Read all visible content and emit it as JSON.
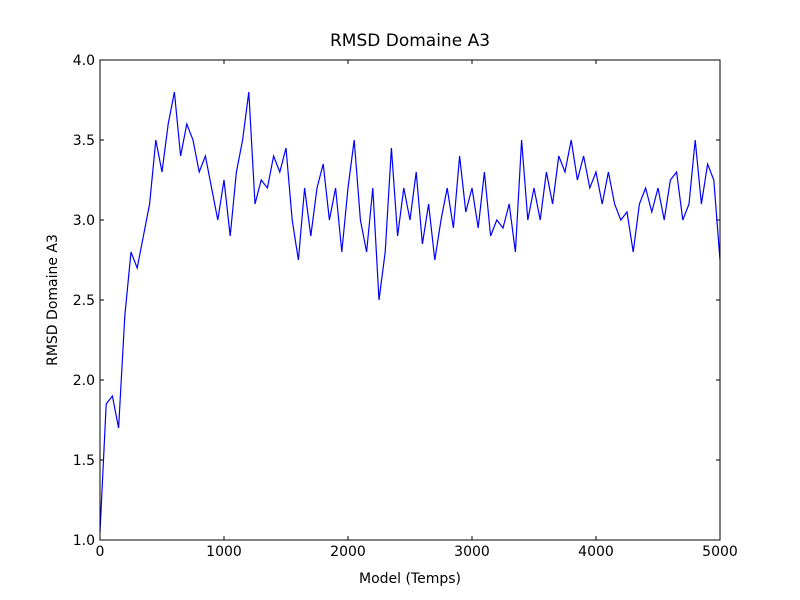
{
  "chart_data": {
    "type": "line",
    "title": "RMSD Domaine A3",
    "x_label": "Model (Temps)",
    "y_label": "RMSD Domaine A3",
    "x": [
      0,
      50,
      100,
      150,
      200,
      250,
      300,
      350,
      400,
      450,
      500,
      550,
      600,
      650,
      700,
      750,
      800,
      850,
      900,
      950,
      1000,
      1050,
      1100,
      1150,
      1200,
      1250,
      1300,
      1350,
      1400,
      1450,
      1500,
      1550,
      1600,
      1650,
      1700,
      1750,
      1800,
      1850,
      1900,
      1950,
      2000,
      2050,
      2100,
      2150,
      2200,
      2250,
      2300,
      2350,
      2400,
      2450,
      2500,
      2550,
      2600,
      2650,
      2700,
      2750,
      2800,
      2850,
      2900,
      2950,
      3000,
      3050,
      3100,
      3150,
      3200,
      3250,
      3300,
      3350,
      3400,
      3450,
      3500,
      3550,
      3600,
      3650,
      3700,
      3750,
      3800,
      3850,
      3900,
      3950,
      4000,
      4050,
      4100,
      4150,
      4200,
      4250,
      4300,
      4350,
      4400,
      4450,
      4500,
      4550,
      4600,
      4650,
      4700,
      4750,
      4800,
      4850,
      4900,
      4950,
      5000
    ],
    "series": [
      {
        "name": "RMSD Domaine A3",
        "color": "#0000ff",
        "values": [
          1.05,
          1.85,
          1.9,
          1.7,
          2.4,
          2.8,
          2.7,
          2.9,
          3.1,
          3.5,
          3.3,
          3.6,
          3.8,
          3.4,
          3.6,
          3.5,
          3.3,
          3.4,
          3.2,
          3.0,
          3.25,
          2.9,
          3.3,
          3.5,
          3.8,
          3.1,
          3.25,
          3.2,
          3.4,
          3.3,
          3.45,
          3.0,
          2.75,
          3.2,
          2.9,
          3.2,
          3.35,
          3.0,
          3.2,
          2.8,
          3.2,
          3.5,
          3.0,
          2.8,
          3.2,
          2.5,
          2.8,
          3.45,
          2.9,
          3.2,
          3.0,
          3.3,
          2.85,
          3.1,
          2.75,
          3.0,
          3.2,
          2.95,
          3.4,
          3.05,
          3.2,
          2.95,
          3.3,
          2.9,
          3.0,
          2.95,
          3.1,
          2.8,
          3.5,
          3.0,
          3.2,
          3.0,
          3.3,
          3.1,
          3.4,
          3.3,
          3.5,
          3.25,
          3.4,
          3.2,
          3.3,
          3.1,
          3.3,
          3.1,
          3.0,
          3.05,
          2.8,
          3.1,
          3.2,
          3.05,
          3.2,
          3.0,
          3.25,
          3.3,
          3.0,
          3.1,
          3.5,
          3.1,
          3.35,
          3.25,
          2.75
        ]
      }
    ],
    "xlim": [
      0,
      5000
    ],
    "xticks": [
      0,
      1000,
      2000,
      3000,
      4000,
      5000
    ],
    "ylim": [
      1.0,
      4.0
    ],
    "yticks": [
      {
        "value": 1.0,
        "label": "1.0"
      },
      {
        "value": 1.5,
        "label": "1.5"
      },
      {
        "value": 2.0,
        "label": "2.0"
      },
      {
        "value": 2.5,
        "label": "2.5"
      },
      {
        "value": 3.0,
        "label": "3.0"
      },
      {
        "value": 3.5,
        "label": "3.5"
      },
      {
        "value": 4.0,
        "label": "4.0"
      }
    ],
    "grid": false
  }
}
